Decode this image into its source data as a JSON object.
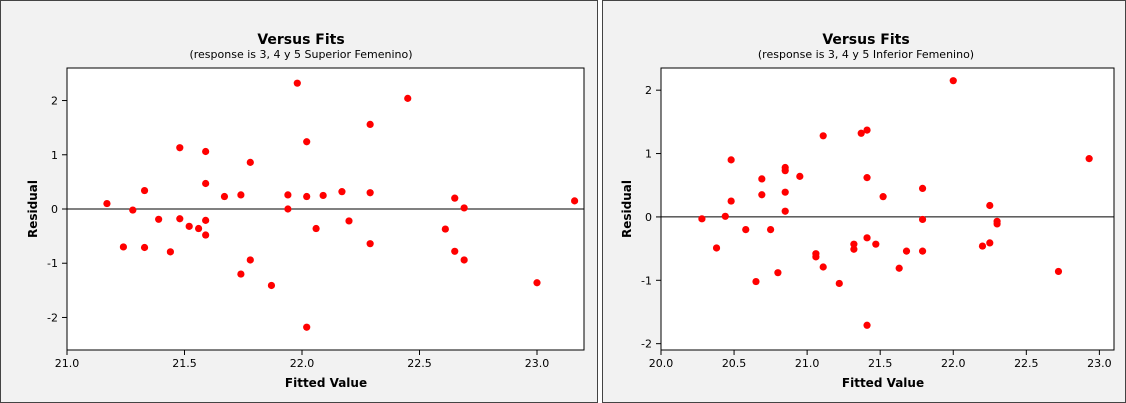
{
  "chart_data": [
    {
      "type": "scatter",
      "title": "Versus Fits",
      "subtitle": "(response is 3, 4 y 5 Superior Femenino)",
      "xlabel": "Fitted Value",
      "ylabel": "Residual",
      "xlim": [
        21.0,
        23.2
      ],
      "ylim": [
        -2.6,
        2.6
      ],
      "xticks": [
        21.0,
        21.5,
        22.0,
        22.5,
        23.0
      ],
      "xtick_labels": [
        "21.0",
        "21.5",
        "22.0",
        "22.5",
        "23.0"
      ],
      "yticks": [
        -2,
        -1,
        0,
        1,
        2
      ],
      "ytick_labels": [
        "-2",
        "-1",
        "0",
        "1",
        "2"
      ],
      "reference_line": 0,
      "grid": false,
      "marker_color": "#ff0000",
      "points": [
        {
          "x": 21.17,
          "y": 0.1
        },
        {
          "x": 21.24,
          "y": -0.7
        },
        {
          "x": 21.28,
          "y": -0.02
        },
        {
          "x": 21.33,
          "y": 0.34
        },
        {
          "x": 21.33,
          "y": -0.71
        },
        {
          "x": 21.39,
          "y": -0.19
        },
        {
          "x": 21.44,
          "y": -0.79
        },
        {
          "x": 21.48,
          "y": 1.13
        },
        {
          "x": 21.48,
          "y": -0.18
        },
        {
          "x": 21.52,
          "y": -0.32
        },
        {
          "x": 21.56,
          "y": -0.36
        },
        {
          "x": 21.59,
          "y": 1.06
        },
        {
          "x": 21.59,
          "y": 0.47
        },
        {
          "x": 21.59,
          "y": -0.21
        },
        {
          "x": 21.59,
          "y": -0.48
        },
        {
          "x": 21.67,
          "y": 0.23
        },
        {
          "x": 21.74,
          "y": 0.26
        },
        {
          "x": 21.74,
          "y": -1.2
        },
        {
          "x": 21.78,
          "y": 0.86
        },
        {
          "x": 21.78,
          "y": -0.94
        },
        {
          "x": 21.87,
          "y": -1.41
        },
        {
          "x": 21.94,
          "y": 0.26
        },
        {
          "x": 21.94,
          "y": 0.0
        },
        {
          "x": 21.98,
          "y": 2.32
        },
        {
          "x": 22.02,
          "y": 1.24
        },
        {
          "x": 22.02,
          "y": 0.23
        },
        {
          "x": 22.02,
          "y": -2.18
        },
        {
          "x": 22.06,
          "y": -0.36
        },
        {
          "x": 22.09,
          "y": 0.25
        },
        {
          "x": 22.17,
          "y": 0.32
        },
        {
          "x": 22.2,
          "y": -0.22
        },
        {
          "x": 22.29,
          "y": 1.56
        },
        {
          "x": 22.29,
          "y": 0.3
        },
        {
          "x": 22.29,
          "y": -0.64
        },
        {
          "x": 22.45,
          "y": 2.04
        },
        {
          "x": 22.61,
          "y": -0.37
        },
        {
          "x": 22.65,
          "y": 0.2
        },
        {
          "x": 22.65,
          "y": -0.78
        },
        {
          "x": 22.69,
          "y": 0.02
        },
        {
          "x": 22.69,
          "y": -0.94
        },
        {
          "x": 23.0,
          "y": -1.36
        },
        {
          "x": 23.16,
          "y": 0.15
        }
      ]
    },
    {
      "type": "scatter",
      "title": "Versus Fits",
      "subtitle": "(response is 3, 4 y 5 Inferior Femenino)",
      "xlabel": "Fitted Value",
      "ylabel": "Residual",
      "xlim": [
        20.0,
        23.1
      ],
      "ylim": [
        -2.1,
        2.35
      ],
      "xticks": [
        20.0,
        20.5,
        21.0,
        21.5,
        22.0,
        22.5,
        23.0
      ],
      "xtick_labels": [
        "20.0",
        "20.5",
        "21.0",
        "21.5",
        "22.0",
        "22.5",
        "23.0"
      ],
      "yticks": [
        -2,
        -1,
        0,
        1,
        2
      ],
      "ytick_labels": [
        "-2",
        "-1",
        "0",
        "1",
        "2"
      ],
      "reference_line": 0,
      "grid": false,
      "marker_color": "#ff0000",
      "points": [
        {
          "x": 20.28,
          "y": -0.03
        },
        {
          "x": 20.38,
          "y": -0.49
        },
        {
          "x": 20.44,
          "y": 0.01
        },
        {
          "x": 20.48,
          "y": 0.9
        },
        {
          "x": 20.48,
          "y": 0.25
        },
        {
          "x": 20.58,
          "y": -0.2
        },
        {
          "x": 20.65,
          "y": -1.02
        },
        {
          "x": 20.69,
          "y": 0.6
        },
        {
          "x": 20.69,
          "y": 0.35
        },
        {
          "x": 20.75,
          "y": -0.2
        },
        {
          "x": 20.8,
          "y": -0.88
        },
        {
          "x": 20.85,
          "y": 0.78
        },
        {
          "x": 20.85,
          "y": 0.73
        },
        {
          "x": 20.85,
          "y": 0.39
        },
        {
          "x": 20.85,
          "y": 0.09
        },
        {
          "x": 20.95,
          "y": 0.64
        },
        {
          "x": 21.06,
          "y": -0.58
        },
        {
          "x": 21.06,
          "y": -0.63
        },
        {
          "x": 21.11,
          "y": 1.28
        },
        {
          "x": 21.11,
          "y": -0.79
        },
        {
          "x": 21.22,
          "y": -1.05
        },
        {
          "x": 21.32,
          "y": -0.43
        },
        {
          "x": 21.32,
          "y": -0.51
        },
        {
          "x": 21.37,
          "y": 1.32
        },
        {
          "x": 21.41,
          "y": 1.37
        },
        {
          "x": 21.41,
          "y": 0.62
        },
        {
          "x": 21.41,
          "y": -0.33
        },
        {
          "x": 21.41,
          "y": -1.71
        },
        {
          "x": 21.47,
          "y": -0.43
        },
        {
          "x": 21.52,
          "y": 0.32
        },
        {
          "x": 21.63,
          "y": -0.81
        },
        {
          "x": 21.68,
          "y": -0.54
        },
        {
          "x": 21.79,
          "y": 0.45
        },
        {
          "x": 21.79,
          "y": -0.04
        },
        {
          "x": 21.79,
          "y": -0.54
        },
        {
          "x": 22.0,
          "y": 2.15
        },
        {
          "x": 22.2,
          "y": -0.46
        },
        {
          "x": 22.25,
          "y": 0.18
        },
        {
          "x": 22.25,
          "y": -0.41
        },
        {
          "x": 22.3,
          "y": -0.07
        },
        {
          "x": 22.3,
          "y": -0.11
        },
        {
          "x": 22.72,
          "y": -0.86
        },
        {
          "x": 22.93,
          "y": 0.92
        }
      ]
    }
  ]
}
